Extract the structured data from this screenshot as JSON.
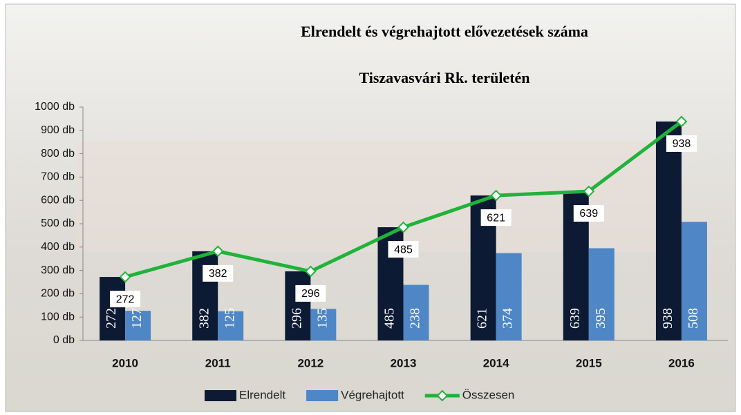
{
  "chart_data": {
    "type": "bar-line",
    "title": "Elrendelt és végrehajtott elővezetések száma",
    "subtitle": "Tiszavasvári Rk. területén",
    "categories": [
      "2010",
      "2011",
      "2012",
      "2013",
      "2014",
      "2015",
      "2016"
    ],
    "series": [
      {
        "name": "Elrendelt",
        "type": "bar",
        "color": "#0d1a33",
        "values": [
          272,
          382,
          296,
          485,
          621,
          639,
          938
        ]
      },
      {
        "name": "Végrehajtott",
        "type": "bar",
        "color": "#4f86c6",
        "values": [
          127,
          125,
          135,
          238,
          374,
          395,
          508
        ]
      },
      {
        "name": "Összesen",
        "type": "line",
        "color": "#1fb33a",
        "values": [
          272,
          382,
          296,
          485,
          621,
          639,
          938
        ]
      }
    ],
    "ylim": [
      0,
      1000
    ],
    "yticks": [
      {
        "value": 0,
        "label": "0 db"
      },
      {
        "value": 100,
        "label": "100 db"
      },
      {
        "value": 200,
        "label": "200 db"
      },
      {
        "value": 300,
        "label": "300 db"
      },
      {
        "value": 400,
        "label": "400 db"
      },
      {
        "value": 500,
        "label": "500 db"
      },
      {
        "value": 600,
        "label": "600 db"
      },
      {
        "value": 700,
        "label": "700 db"
      },
      {
        "value": 800,
        "label": "800 db"
      },
      {
        "value": 900,
        "label": "900 db"
      },
      {
        "value": 1000,
        "label": "1000 db"
      }
    ],
    "legend": "bottom"
  }
}
